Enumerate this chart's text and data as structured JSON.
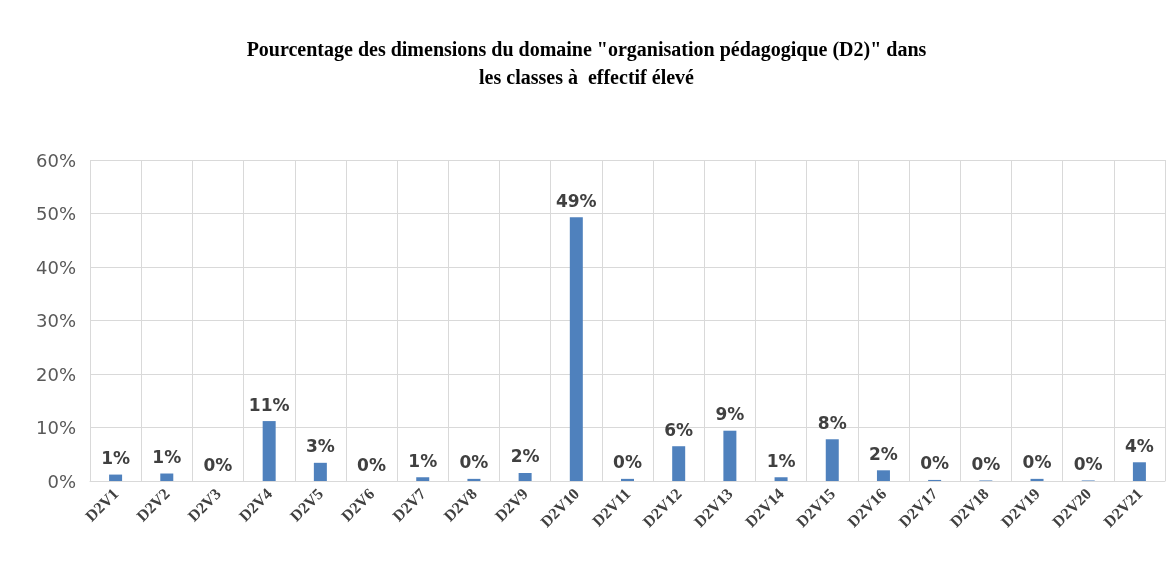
{
  "chart_data": {
    "type": "bar",
    "title": "Pourcentage des dimensions du domaine \"organisation pédagogique (D2)\" dans\nles classes à  effectif élevé",
    "categories": [
      "D2V1",
      "D2V2",
      "D2V3",
      "D2V4",
      "D2V5",
      "D2V6",
      "D2V7",
      "D2V8",
      "D2V9",
      "D2V10",
      "D2V11",
      "D2V12",
      "D2V13",
      "D2V14",
      "D2V15",
      "D2V16",
      "D2V17",
      "D2V18",
      "D2V19",
      "D2V20",
      "D2V21"
    ],
    "values": [
      1.2,
      1.4,
      0,
      11.2,
      3.4,
      0,
      0.7,
      0.4,
      1.5,
      49.3,
      0.4,
      6.5,
      9.4,
      0.7,
      7.8,
      2.0,
      0.2,
      0.1,
      0.4,
      0.1,
      3.5
    ],
    "value_labels": [
      "1%",
      "1%",
      "0%",
      "11%",
      "3%",
      "0%",
      "1%",
      "0%",
      "2%",
      "49%",
      "0%",
      "6%",
      "9%",
      "1%",
      "8%",
      "2%",
      "0%",
      "0%",
      "0%",
      "0%",
      "4%"
    ],
    "color": "#4f81bd",
    "ylim": [
      0,
      60
    ],
    "yticks": [
      {
        "value": 0,
        "label": "0%"
      },
      {
        "value": 10,
        "label": "10%"
      },
      {
        "value": 20,
        "label": "20%"
      },
      {
        "value": 30,
        "label": "30%"
      },
      {
        "value": 40,
        "label": "40%"
      },
      {
        "value": 50,
        "label": "50%"
      },
      {
        "value": 60,
        "label": "60%"
      }
    ],
    "grid": true
  }
}
